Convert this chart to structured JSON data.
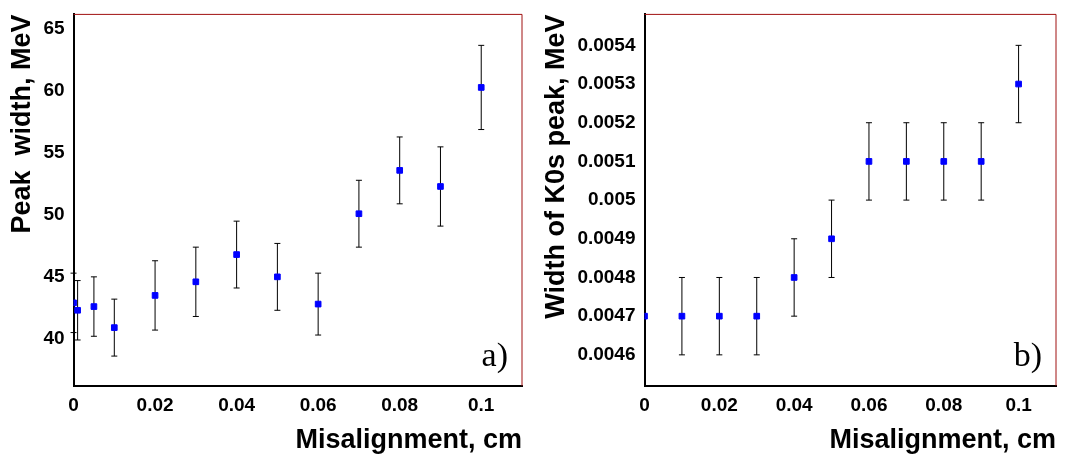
{
  "chart_data": [
    {
      "type": "scatter",
      "xlabel": "Misalignment, cm",
      "ylabel": "Peak  width, MeV",
      "annotations": [
        "a)"
      ],
      "marker": "square",
      "grid": false,
      "color": "#0000ff",
      "x": [
        0,
        0.001,
        0.005,
        0.01,
        0.02,
        0.03,
        0.04,
        0.05,
        0.06,
        0.07,
        0.08,
        0.09,
        0.1
      ],
      "values": [
        42.9,
        42.3,
        42.6,
        40.9,
        43.5,
        44.6,
        46.8,
        45.0,
        42.8,
        50.1,
        53.6,
        52.3,
        60.3
      ],
      "errors": [
        2.4,
        2.4,
        2.4,
        2.3,
        2.8,
        2.8,
        2.7,
        2.7,
        2.5,
        2.7,
        2.7,
        3.2,
        3.4
      ],
      "xlim": [
        0,
        0.11
      ],
      "ylim": [
        36.2,
        66.2
      ],
      "xticks": [
        0,
        0.02,
        0.04,
        0.06,
        0.08,
        0.1
      ],
      "yticks": [
        40,
        45,
        50,
        55,
        60,
        65
      ]
    },
    {
      "type": "scatter",
      "xlabel": "Misalignment, cm",
      "ylabel": "Width of K0s peak, MeV",
      "annotations": [
        "b)"
      ],
      "marker": "square",
      "grid": false,
      "color": "#0000ff",
      "x": [
        0,
        0.01,
        0.02,
        0.03,
        0.04,
        0.05,
        0.06,
        0.07,
        0.08,
        0.09,
        0.1
      ],
      "values": [
        0.0047,
        0.0047,
        0.0047,
        0.0047,
        0.0048,
        0.0049,
        0.0051,
        0.0051,
        0.0051,
        0.0051,
        0.0053
      ],
      "errors": [
        null,
        0.0001,
        0.0001,
        0.0001,
        0.0001,
        0.0001,
        0.0001,
        0.0001,
        0.0001,
        0.0001,
        0.0001
      ],
      "xlim": [
        0,
        0.11
      ],
      "ylim": [
        0.00452,
        0.00548
      ],
      "xticks": [
        0,
        0.02,
        0.04,
        0.06,
        0.08,
        0.1
      ],
      "yticks": [
        0.0046,
        0.0047,
        0.0048,
        0.0049,
        0.005,
        0.0051,
        0.0052,
        0.0053,
        0.0054
      ]
    }
  ]
}
